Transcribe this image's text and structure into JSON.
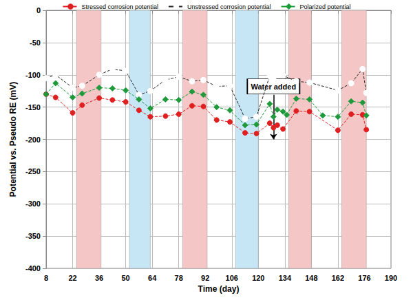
{
  "chart_data": {
    "type": "line",
    "x_label": "Time (day)",
    "y_label": "Potential vs. Pseudo RE (mV)",
    "xlim": [
      8,
      190
    ],
    "xticks": [
      8,
      22,
      36,
      50,
      64,
      78,
      92,
      106,
      120,
      134,
      148,
      162,
      176,
      190
    ],
    "ylim": [
      -400,
      0
    ],
    "yticks": [
      -400,
      -350,
      -300,
      -250,
      -200,
      -150,
      -100,
      -50,
      0
    ],
    "grid": true,
    "legend": "top",
    "series": [
      {
        "name": "Stressed corrosion potential",
        "color": "#e02020",
        "marker": "circle",
        "line_style": "dashed",
        "x": [
          8,
          13,
          22,
          27,
          36,
          43,
          50,
          57,
          63,
          71,
          78,
          85,
          91,
          98,
          105,
          113,
          119,
          126,
          128,
          130,
          133,
          140,
          147,
          162,
          169,
          175,
          177
        ],
        "values": [
          -130,
          -135,
          -159,
          -147,
          -136,
          -139,
          -142,
          -155,
          -165,
          -164,
          -161,
          -148,
          -149,
          -170,
          -173,
          -190,
          -191,
          -175,
          -182,
          -178,
          -184,
          -156,
          -157,
          -186,
          -161,
          -162,
          -185
        ]
      },
      {
        "name": "Unstressed corrosion potential",
        "color": "#222222",
        "marker": "open_circle",
        "line_style": "dashed",
        "x": [
          8,
          13,
          22,
          27,
          36,
          43,
          50,
          57,
          63,
          71,
          78,
          85,
          91,
          98,
          105,
          113,
          119,
          126,
          128,
          130,
          133,
          140,
          147,
          162,
          169,
          175,
          177
        ],
        "values": [
          -105,
          -100,
          -120,
          -117,
          -100,
          -91,
          -94,
          -131,
          -125,
          -108,
          -103,
          -110,
          -108,
          -118,
          -117,
          -168,
          -165,
          -102,
          -104,
          -100,
          -101,
          -110,
          -112,
          -124,
          -113,
          -91,
          -128
        ]
      },
      {
        "name": "Polarized potential",
        "color": "#1e9a3a",
        "marker": "diamond",
        "line_style": "dashed",
        "x": [
          8,
          13,
          22,
          27,
          36,
          43,
          50,
          57,
          63,
          71,
          78,
          85,
          91,
          98,
          105,
          113,
          119,
          126,
          128,
          130,
          133,
          135,
          140,
          147,
          154,
          162,
          169,
          175,
          177
        ],
        "values": [
          -130,
          -113,
          -135,
          -129,
          -120,
          -121,
          -124,
          -138,
          -152,
          -138,
          -139,
          -126,
          -131,
          -150,
          -155,
          -178,
          -177,
          -145,
          -165,
          -154,
          -157,
          -162,
          -137,
          -138,
          -163,
          -165,
          -141,
          -143,
          -163
        ]
      }
    ],
    "shaded_periods": [
      {
        "start": 24,
        "end": 37,
        "color": "#f4c6c6"
      },
      {
        "start": 52,
        "end": 63,
        "color": "#c6e6f6"
      },
      {
        "start": 80,
        "end": 93,
        "color": "#f4c6c6"
      },
      {
        "start": 108,
        "end": 120,
        "color": "#c6e6f6"
      },
      {
        "start": 136,
        "end": 148,
        "color": "#f4c6c6"
      },
      {
        "start": 164,
        "end": 177,
        "color": "#f4c6c6"
      }
    ],
    "annotations": [
      {
        "text": "Water added",
        "x": 128,
        "y": -118,
        "arrow_from_y": -131,
        "arrow_to_y": -200
      }
    ]
  }
}
